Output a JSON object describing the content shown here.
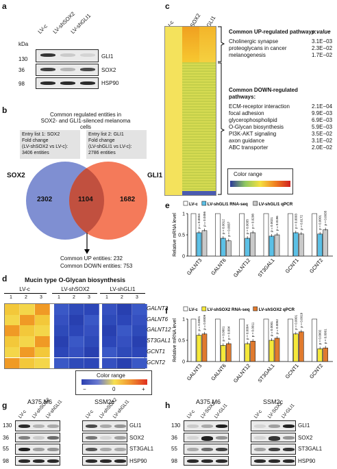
{
  "panel_labels": {
    "a": "a",
    "b": "b",
    "c": "c",
    "d": "d",
    "e": "e",
    "f": "f",
    "g": "g",
    "h": "h"
  },
  "panel_a": {
    "lanes": [
      "LV-c",
      "LV-shSOX2",
      "LV-shGLI1"
    ],
    "kda": "kDa",
    "rows": [
      {
        "mw": "130",
        "protein": "GLI1",
        "bands": [
          0.85,
          0.15,
          0.1
        ]
      },
      {
        "mw": "36",
        "protein": "SOX2",
        "bands": [
          0.8,
          0.25,
          0.75
        ]
      },
      {
        "mw": "98",
        "protein": "HSP90",
        "bands": [
          0.9,
          0.9,
          0.9
        ]
      }
    ]
  },
  "panel_b": {
    "title_line1": "Common regulated entities in",
    "title_line2": "SOX2- and GLI1-silenced melanoma cells",
    "box1": [
      "Entry list 1: SOX2",
      "Fold change",
      "(LV-shSOX2 vs LV-c):",
      "3406 entities"
    ],
    "box2": [
      "Entry list 2: GLI1",
      "Fold change",
      "(LV-shGLI1 vs LV-c):",
      "2786 entities"
    ],
    "left_set": "SOX2",
    "right_set": "GLI1",
    "left_only": "2302",
    "overlap": "1104",
    "right_only": "1682",
    "common_up": "Common UP entities: 232",
    "common_down": "Common DOWN entities: 753",
    "colors": {
      "left": "#7f8fd2",
      "right": "#f47a5a",
      "overlap": "#c1503f"
    }
  },
  "panel_c": {
    "columns": [
      "LV-c",
      "LV-shSOX2",
      "LV-shGLI1"
    ],
    "pvalue_header": "p value",
    "up_header": "Common UP-regulated pathways:",
    "up": [
      {
        "name": "Cholinergic synapse",
        "p": "3.1E−03"
      },
      {
        "name": "proteoglycans in cancer",
        "p": "2.3E−02"
      },
      {
        "name": "melanogenesis",
        "p": "1.7E−02"
      }
    ],
    "down_header_1": "Common DOWN-regulated",
    "down_header_2": "pathways:",
    "down": [
      {
        "name": "ECM-receptor interaction",
        "p": "2.1E−04"
      },
      {
        "name": "focal adhesion",
        "p": "9.9E−03"
      },
      {
        "name": "glycerophospholipid",
        "p": "6.9E−03"
      },
      {
        "name": "O-Glycan biosynthesis",
        "p": "5.9E−03"
      },
      {
        "name": "PI3K-AKT signaling",
        "p": "3.5E−02"
      },
      {
        "name": "axon guidance",
        "p": "3.1E−02"
      },
      {
        "name": "ABC transporter",
        "p": "2.0E−02"
      }
    ],
    "color_range_label": "Color range"
  },
  "panel_d": {
    "title": "Mucin type O-Glycan biosynthesis",
    "groups": [
      "LV-c",
      "LV-shSOX2",
      "LV-shGLI1"
    ],
    "replicates": [
      "1",
      "2",
      "3"
    ],
    "genes": [
      "GALNT3",
      "GALNT6",
      "GALNT12",
      "ST3GAL1",
      "GCNT1",
      "GCNT2"
    ],
    "color_range_label": "Color range",
    "scale_ticks": [
      "−",
      "0",
      "+"
    ]
  },
  "chart_data": [
    {
      "type": "bar",
      "panel": "e",
      "ylabel": "Relative mRNA level",
      "ylim": [
        0,
        1
      ],
      "yticks": [
        "0",
        "0.5",
        "1"
      ],
      "categories": [
        "GALNT3",
        "GALNT6",
        "GALNT12",
        "ST3GAL1",
        "GCNT1",
        "GCNT2"
      ],
      "series": [
        {
          "name": "LV-c",
          "values": [
            1,
            1,
            1,
            1,
            1,
            1
          ],
          "color": "#ffffff"
        },
        {
          "name": "LV-shGLI1 RNA-seq",
          "values": [
            0.55,
            0.42,
            0.42,
            0.47,
            0.55,
            0.52
          ],
          "color": "#5bc0e6"
        },
        {
          "name": "LV-shGLI1 qPCR",
          "values": [
            0.6,
            0.36,
            0.55,
            0.5,
            0.52,
            0.62
          ],
          "color": "#c9c9c9"
        }
      ],
      "pvalues": [
        [
          "p = 0.0004",
          "p = 0.0456"
        ],
        [
          "p = 0.0012",
          "p = 0.0037"
        ],
        [
          "p = 0.0035",
          "p = 0.0298"
        ],
        [
          "p = 0.0021",
          "p = 0.0196"
        ],
        [
          "p = 0.0003",
          "p = 0.0172"
        ],
        [
          "p = 0.0001",
          "p = 0.0035"
        ]
      ]
    },
    {
      "type": "bar",
      "panel": "f",
      "ylabel": "Relative mRNA level",
      "ylim": [
        0,
        1
      ],
      "yticks": [
        "0",
        "0.5",
        "1"
      ],
      "categories": [
        "GALNT3",
        "GALNT6",
        "GALNT12",
        "ST3GAL1",
        "GCNT1",
        "GCNT2"
      ],
      "series": [
        {
          "name": "LV-c",
          "values": [
            1,
            1,
            1,
            1,
            1,
            1
          ],
          "color": "#ffffff"
        },
        {
          "name": "LV-shSOX2 RNA-seq",
          "values": [
            0.62,
            0.38,
            0.42,
            0.5,
            0.65,
            0.3
          ],
          "color": "#f5e83a"
        },
        {
          "name": "LV-shSOX2 qPCR",
          "values": [
            0.65,
            0.42,
            0.48,
            0.55,
            0.7,
            0.32
          ],
          "color": "#e07a2e"
        }
      ],
      "pvalues": [
        [
          "p = 0.0001",
          "p = 0.0009"
        ],
        [
          "p = 0.0001",
          "p = 0.004"
        ],
        [
          "p = 0.0004",
          "p = 0.0011"
        ],
        [
          "p = 0.0001",
          "p = 0.0052"
        ],
        [
          "p = 0.0001",
          "p = 0.0019"
        ],
        [
          "p = 0.0002",
          "p = 0.0001"
        ]
      ]
    }
  ],
  "panel_g": {
    "cell_lines": [
      "A375 M6",
      "SSM2c"
    ],
    "lanes": [
      "LV-c",
      "LV-shSOX2",
      "LV-shGLI1",
      "LV-c",
      "LV-shSOX2",
      "LV-shGLI1"
    ],
    "rows": [
      {
        "mw": "130",
        "protein": "GLI1",
        "bands": [
          0.9,
          0.25,
          0.3,
          0.75,
          0.3,
          0.4
        ]
      },
      {
        "mw": "36",
        "protein": "SOX2",
        "bands": [
          0.5,
          0.15,
          0.6,
          0.55,
          0.1,
          0.35
        ]
      },
      {
        "mw": "55",
        "protein": "ST3GAL1",
        "bands": [
          0.95,
          0.35,
          0.4,
          0.7,
          0.3,
          0.3
        ]
      },
      {
        "mw": "98",
        "protein": "HSP90",
        "bands": [
          0.9,
          0.9,
          0.9,
          0.9,
          0.9,
          0.9
        ]
      }
    ]
  },
  "panel_h": {
    "cell_lines": [
      "A375 M6",
      "SSM2c"
    ],
    "lanes": [
      "LV-c",
      "LV-SOX2",
      "LV-GLI1",
      "LV-c",
      "LV-SOX2",
      "LV-GLI1"
    ],
    "rows": [
      {
        "mw": "130",
        "protein": "GLI1",
        "bands": [
          0.15,
          0.3,
          0.95,
          0.1,
          0.35,
          0.95
        ]
      },
      {
        "mw": "36",
        "protein": "SOX2",
        "bands": [
          0.1,
          0.95,
          0.4,
          0.1,
          0.85,
          0.4
        ]
      },
      {
        "mw": "55",
        "protein": "ST3GAL1",
        "bands": [
          0.3,
          0.6,
          0.8,
          0.35,
          0.8,
          0.85
        ]
      },
      {
        "mw": "98",
        "protein": "HSP90",
        "bands": [
          0.9,
          0.9,
          0.9,
          0.9,
          0.9,
          0.9
        ]
      }
    ]
  }
}
